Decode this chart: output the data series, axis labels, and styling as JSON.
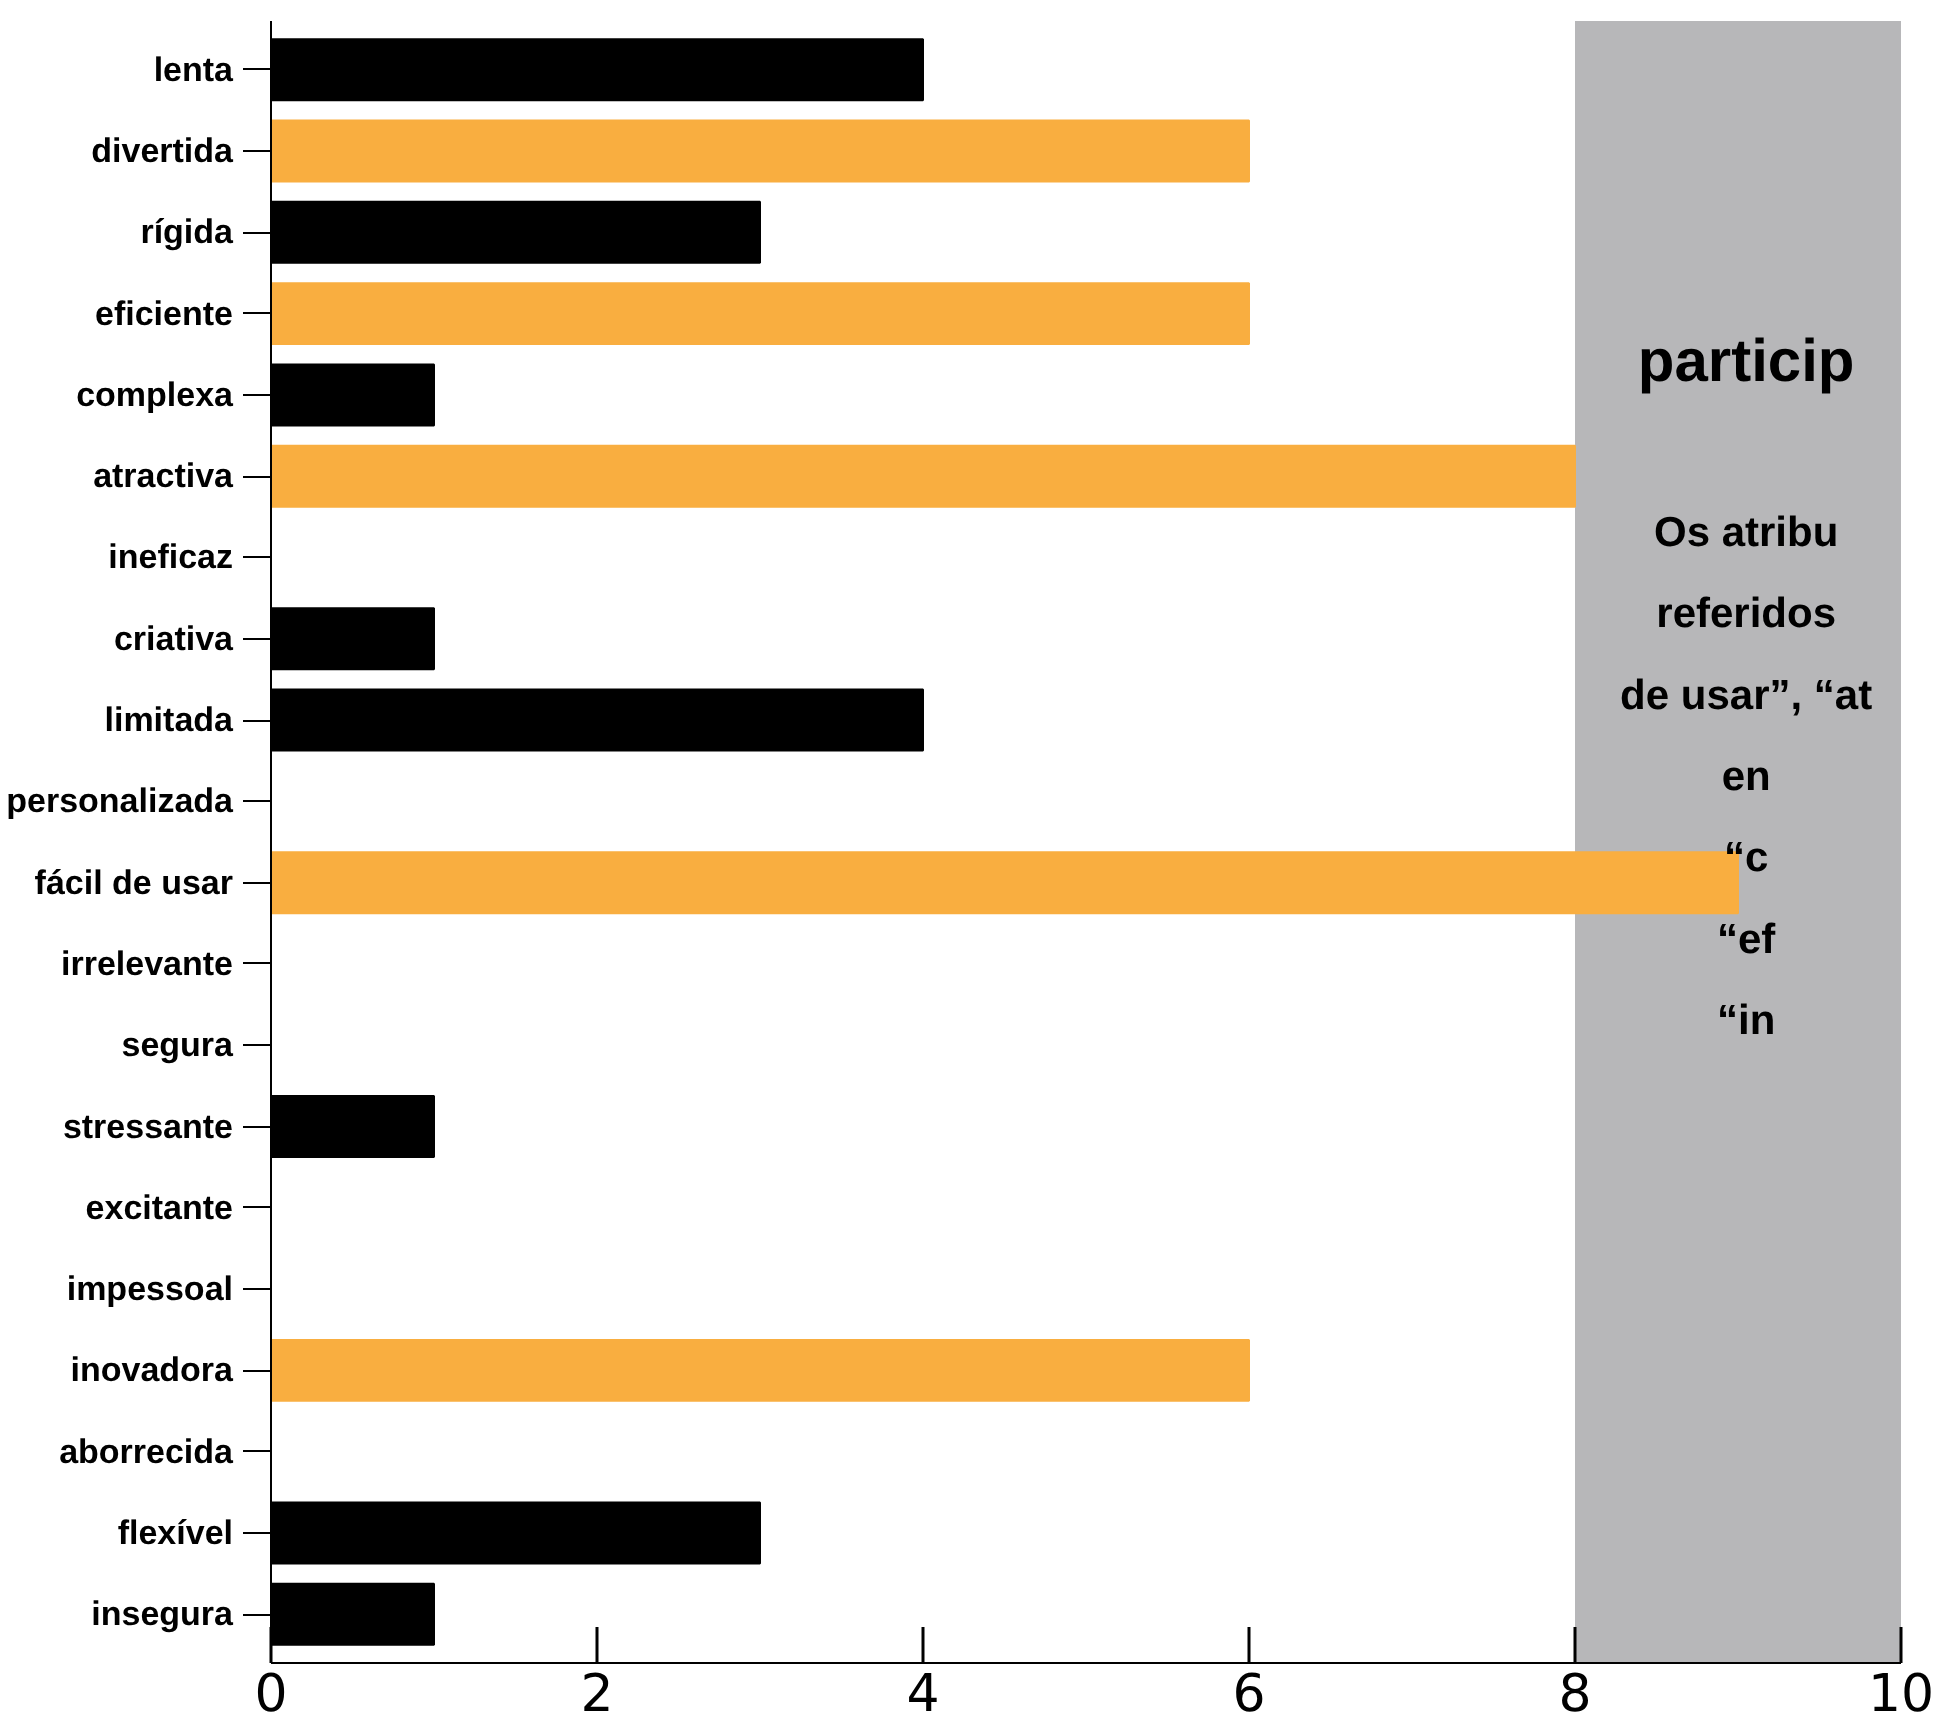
{
  "chart_data": {
    "type": "bar",
    "orientation": "horizontal",
    "categories": [
      "lenta",
      "divertida",
      "rígida",
      "eficiente",
      "complexa",
      "atractiva",
      "ineficaz",
      "criativa",
      "limitada",
      "personalizada",
      "fácil de usar",
      "irrelevante",
      "segura",
      "stressante",
      "excitante",
      "impessoal",
      "inovadora",
      "aborrecida",
      "flexível",
      "insegura"
    ],
    "values": [
      4,
      6,
      3,
      6,
      1,
      8,
      0,
      1,
      4,
      0,
      9,
      0,
      0,
      1,
      0,
      0,
      6,
      0,
      3,
      1
    ],
    "colors": [
      "#000000",
      "#f9ae40",
      "#000000",
      "#f9ae40",
      "#000000",
      "#f9ae40",
      "#000000",
      "#000000",
      "#000000",
      "#000000",
      "#f9ae40",
      "#000000",
      "#000000",
      "#000000",
      "#000000",
      "#000000",
      "#f9ae40",
      "#000000",
      "#000000",
      "#000000"
    ],
    "xlim": [
      0,
      10
    ],
    "xticks": [
      0,
      2,
      4,
      6,
      8,
      10
    ],
    "grid": false,
    "bands": [
      {
        "axis": "x",
        "from": 8,
        "to": 10,
        "color": "#b7b7b9"
      }
    ],
    "annotations": [
      "particip",
      "Os atribu",
      "referidos",
      "de usar”, “at",
      "en",
      "“c",
      "“ef",
      "“in"
    ]
  }
}
